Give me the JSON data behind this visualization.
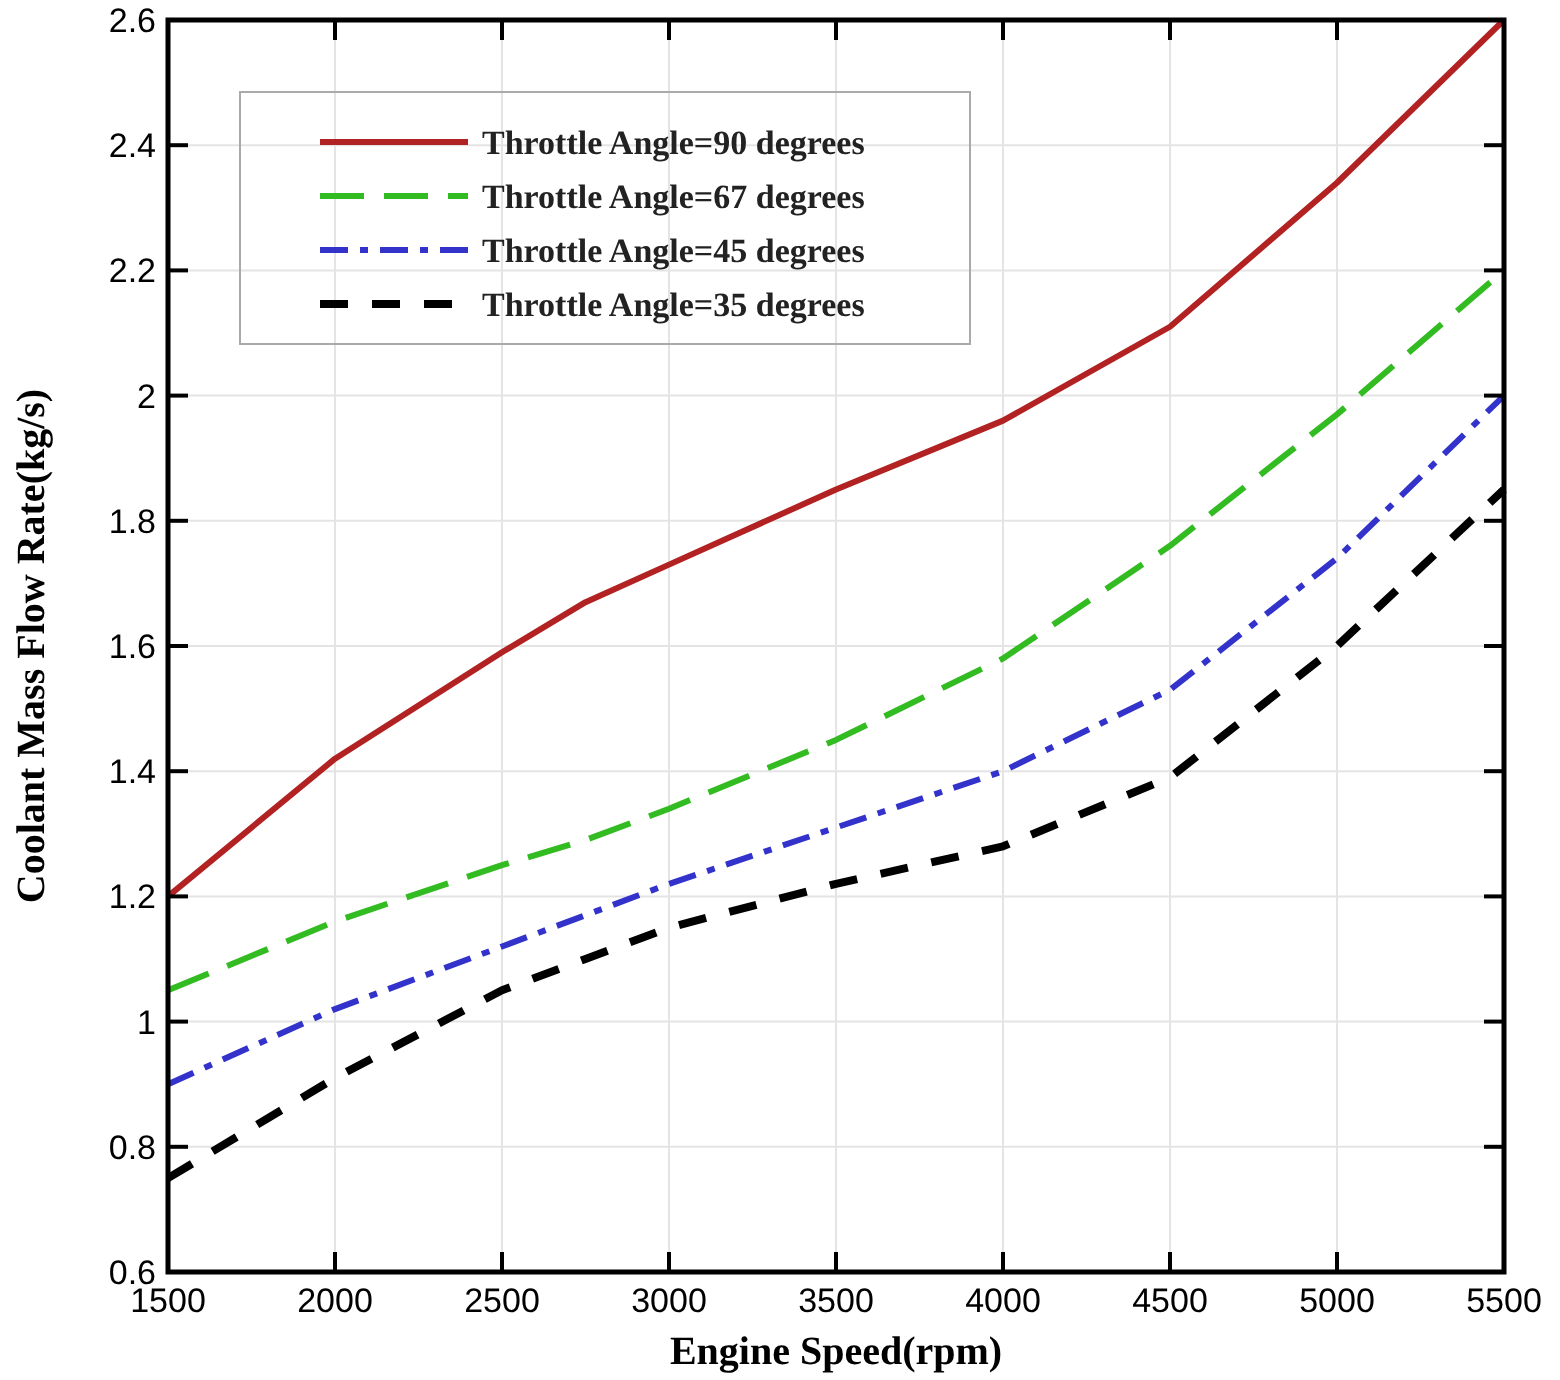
{
  "chart_data": {
    "type": "line",
    "xlabel": "Engine Speed(rpm)",
    "ylabel": "Coolant Mass Flow Rate(kg/s)",
    "x": [
      1500,
      2000,
      2500,
      2750,
      3000,
      3500,
      4000,
      4500,
      5000,
      5500
    ],
    "series": [
      {
        "name": "Throttle Angle=90 degrees",
        "color": "#b22222",
        "line_style": "solid",
        "values": [
          1.2,
          1.42,
          1.59,
          1.67,
          1.73,
          1.85,
          1.96,
          2.11,
          2.34,
          2.6
        ]
      },
      {
        "name": "Throttle Angle=67 degrees",
        "color": "#33bb22",
        "line_style": "dashed",
        "values": [
          1.05,
          1.16,
          1.25,
          1.29,
          1.34,
          1.45,
          1.58,
          1.76,
          1.97,
          2.2
        ]
      },
      {
        "name": "Throttle Angle=45 degrees",
        "color": "#3333cc",
        "line_style": "dashdot",
        "values": [
          0.9,
          1.02,
          1.12,
          1.17,
          1.22,
          1.31,
          1.4,
          1.53,
          1.74,
          2.0
        ]
      },
      {
        "name": "Throttle Angle=35 degrees",
        "color": "#000000",
        "line_style": "dashed",
        "values": [
          0.75,
          0.91,
          1.05,
          1.1,
          1.15,
          1.22,
          1.28,
          1.39,
          1.6,
          1.85
        ]
      }
    ],
    "xlim": [
      1500,
      5500
    ],
    "xticks": [
      1500,
      2000,
      2500,
      3000,
      3500,
      4000,
      4500,
      5000,
      5500
    ],
    "ylim": [
      0.6,
      2.6
    ],
    "yticks": [
      0.6,
      0.8,
      1,
      1.2,
      1.4,
      1.6,
      1.8,
      2,
      2.2,
      2.4,
      2.6
    ],
    "grid": true,
    "legend": "top left"
  }
}
